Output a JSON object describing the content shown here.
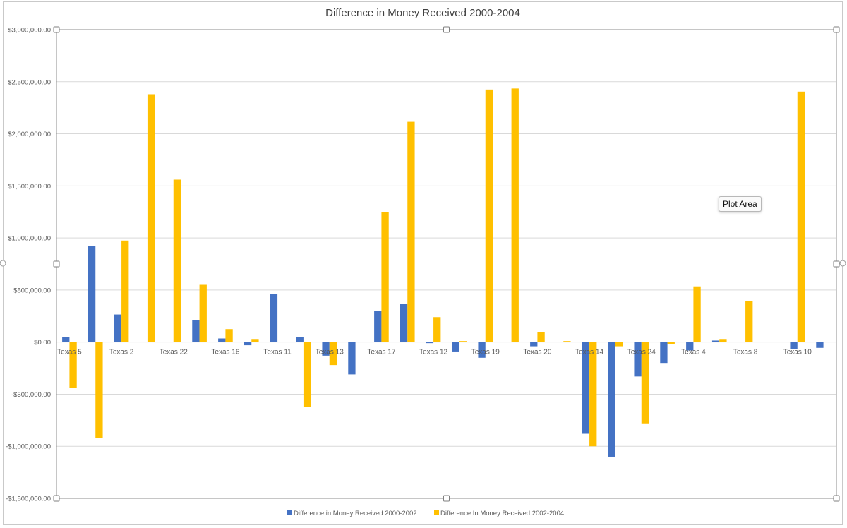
{
  "chart_data": {
    "type": "bar",
    "title": "Difference in Money Received 2000-2004",
    "ylim": [
      -1500000,
      3000000
    ],
    "y_ticks": [
      3000000,
      2500000,
      2000000,
      1500000,
      1000000,
      500000,
      0,
      -500000,
      -1000000,
      -1500000
    ],
    "y_tick_labels": [
      "$3,000,000.00",
      "$2,500,000.00",
      "$2,000,000.00",
      "$1,500,000.00",
      "$1,000,000.00",
      "$500,000.00",
      "$0.00",
      "-$500,000.00",
      "-$1,000,000.00",
      "-$1,500,000.00"
    ],
    "categories": [
      "Texas 5",
      "",
      "Texas 2",
      "",
      "Texas 22",
      "",
      "Texas 16",
      "",
      "Texas 11",
      "",
      "Texas 13",
      "",
      "Texas 17",
      "",
      "Texas 12",
      "",
      "Texas 19",
      "",
      "Texas 20",
      "",
      "Texas 14",
      "",
      "Texas 24",
      "",
      "Texas 4",
      "",
      "Texas 8",
      "",
      "Texas 10",
      ""
    ],
    "series": [
      {
        "name": "Difference in Money Received 2000-2002",
        "color": "#4472C4",
        "values": [
          50000,
          925000,
          265000,
          0,
          0,
          210000,
          35000,
          -30000,
          460000,
          50000,
          -130000,
          -310000,
          300000,
          370000,
          -10000,
          -90000,
          -150000,
          0,
          -40000,
          0,
          -880000,
          -1100000,
          -330000,
          -200000,
          -80000,
          15000,
          0,
          0,
          -70000,
          -55000
        ]
      },
      {
        "name": "Difference In Money Received 2002-2004",
        "color": "#FFC000",
        "values": [
          -440000,
          -920000,
          975000,
          2380000,
          1560000,
          550000,
          125000,
          30000,
          0,
          -620000,
          -220000,
          0,
          1250000,
          2115000,
          240000,
          10000,
          2425000,
          2435000,
          95000,
          10000,
          -1000000,
          -40000,
          -780000,
          -20000,
          535000,
          30000,
          395000,
          0,
          2405000,
          0
        ]
      }
    ],
    "grid": true,
    "legend": "bottom"
  },
  "overlay": {
    "tooltip": "Plot Area"
  }
}
